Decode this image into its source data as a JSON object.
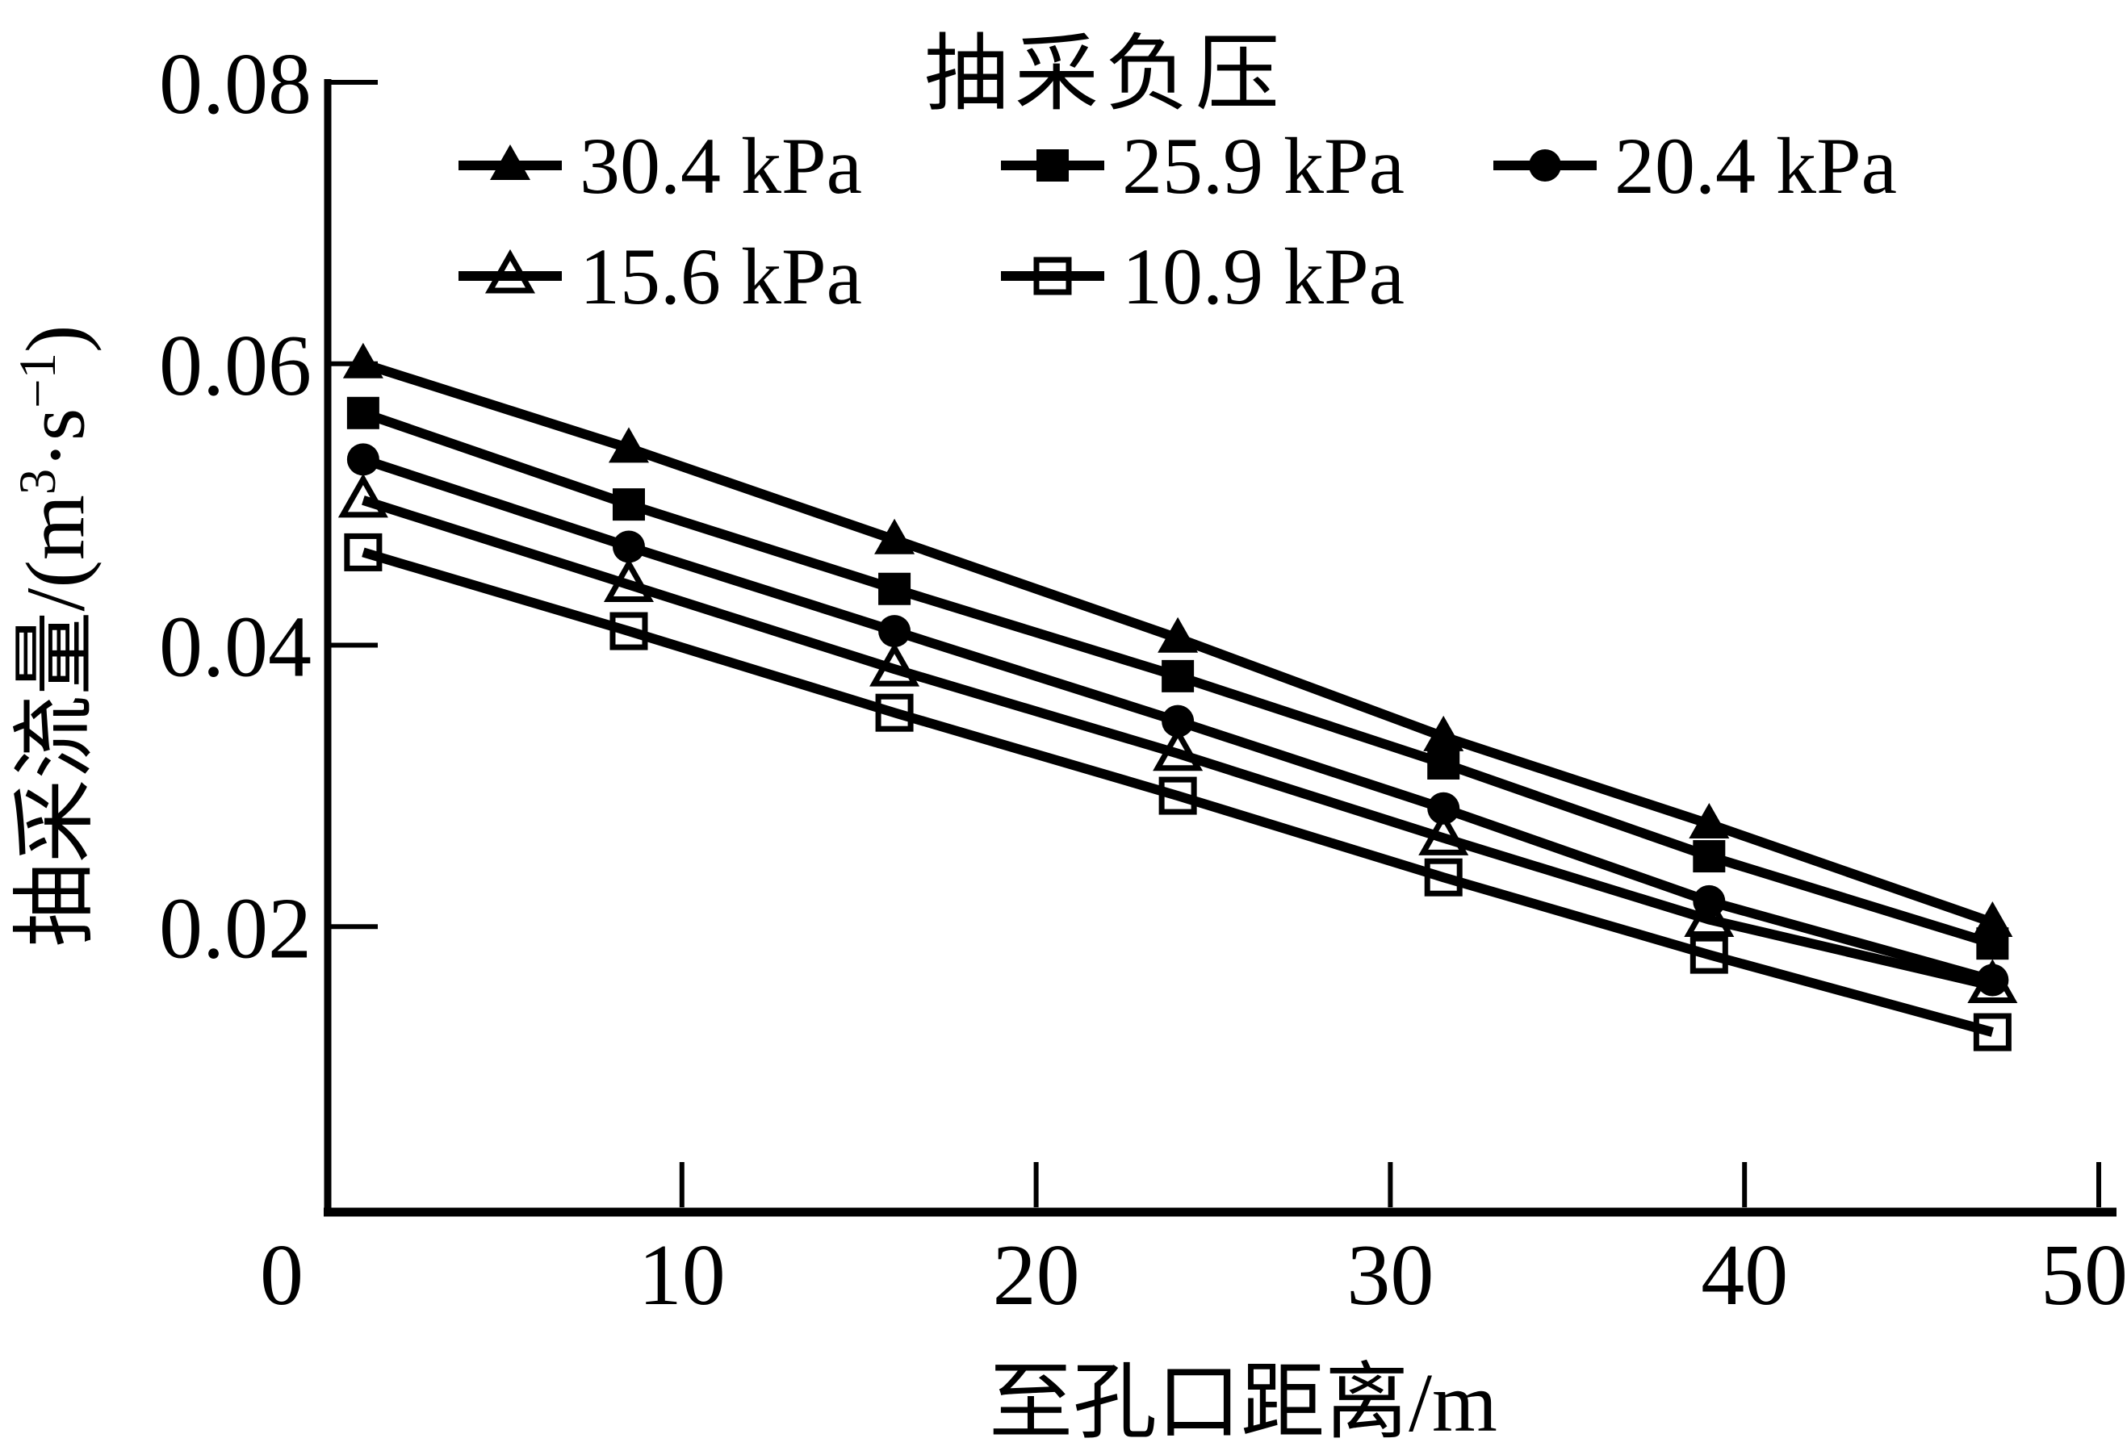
{
  "figure": {
    "background_color": "#ffffff",
    "ink_color": "#000000"
  },
  "chart_data": {
    "type": "line",
    "title": "抽采负压",
    "xlabel": "至孔口距离/m",
    "ylabel": "抽采流量/(m³·s⁻¹)",
    "ylabel_parts": {
      "pre": "抽采流量/(m",
      "sup1": "3",
      "mid": "·s",
      "sup2": "−1",
      "post": ")"
    },
    "xlim": [
      0,
      50
    ],
    "ylim": [
      0,
      0.08
    ],
    "xticks": [
      0,
      10,
      20,
      30,
      40,
      50
    ],
    "xtick_labels": [
      "0",
      "10",
      "20",
      "30",
      "40",
      "50"
    ],
    "yticks": [
      0.02,
      0.04,
      0.06,
      0.08
    ],
    "ytick_labels": [
      "0.02",
      "0.04",
      "0.06",
      "0.08"
    ],
    "grid": false,
    "legend_position": "top-inside",
    "x": [
      1,
      8.5,
      16,
      24,
      31.5,
      39,
      47
    ],
    "series": [
      {
        "name": "30.4 kPa",
        "marker": "triangle-filled",
        "values": [
          0.06,
          0.054,
          0.0475,
          0.0405,
          0.0335,
          0.0273,
          0.0203
        ]
      },
      {
        "name": "25.9 kPa",
        "marker": "square-filled",
        "values": [
          0.0565,
          0.05,
          0.044,
          0.0378,
          0.0316,
          0.025,
          0.0188
        ]
      },
      {
        "name": "20.4 kPa",
        "marker": "circle-filled",
        "values": [
          0.0532,
          0.047,
          0.041,
          0.0346,
          0.0284,
          0.0218,
          0.0162
        ]
      },
      {
        "name": "15.6 kPa",
        "marker": "triangle-open",
        "values": [
          0.0503,
          0.0443,
          0.0383,
          0.0323,
          0.0263,
          0.0205,
          0.0158
        ]
      },
      {
        "name": "10.9 kPa",
        "marker": "square-open",
        "values": [
          0.0466,
          0.041,
          0.0352,
          0.0293,
          0.0235,
          0.018,
          0.0125
        ]
      }
    ]
  }
}
